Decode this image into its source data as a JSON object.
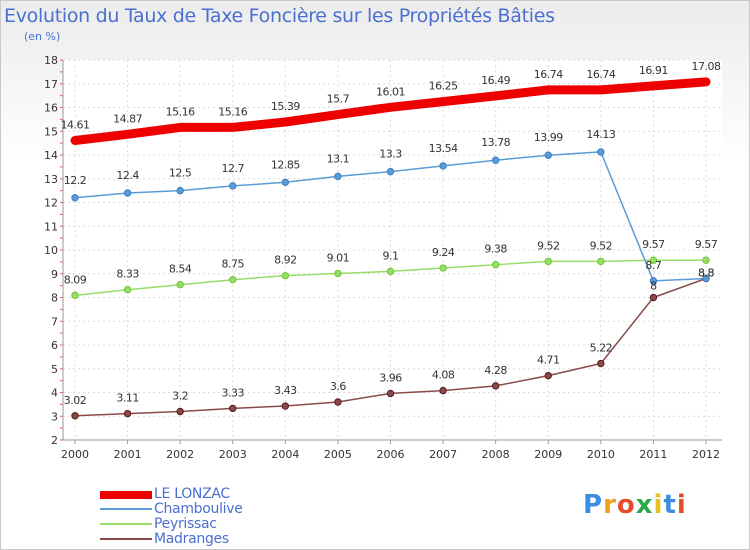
{
  "header": {
    "title": "Evolution du Taux de Taxe Foncière sur les Propriétés Bâties",
    "subtitle": "(en %)"
  },
  "logo": {
    "letters": [
      "P",
      "r",
      "o",
      "x",
      "i",
      "t",
      "i"
    ],
    "colors": [
      "#3a8de0",
      "#f0a020",
      "#e84c2c",
      "#2aa84a",
      "#e8c020",
      "#3a8de0",
      "#e84c2c"
    ]
  },
  "chart_data": {
    "type": "line",
    "title": "Evolution du Taux de Taxe Foncière sur les Propriétés Bâties",
    "ylabel": "(en %)",
    "xlabel": "",
    "ylim": [
      2,
      18
    ],
    "yticks": [
      "2",
      "3",
      "4",
      "5",
      "6",
      "7",
      "8",
      "9",
      "10",
      "11",
      "12",
      "13",
      "14",
      "15",
      "16",
      "17",
      "18"
    ],
    "categories": [
      "2000",
      "2001",
      "2002",
      "2003",
      "2004",
      "2005",
      "2006",
      "2007",
      "2008",
      "2009",
      "2010",
      "2011",
      "2012"
    ],
    "series": [
      {
        "name": "LE LONZAC",
        "color": "#ee0000",
        "style": "thick",
        "values": [
          14.61,
          14.87,
          15.16,
          15.16,
          15.39,
          15.7,
          16.01,
          16.25,
          16.49,
          16.74,
          16.74,
          16.91,
          17.08
        ],
        "labels": [
          "14.61",
          "14.87",
          "15.16",
          "15.16",
          "15.39",
          "15.7",
          "16.01",
          "16.25",
          "16.49",
          "16.74",
          "16.74",
          "16.91",
          "17.08"
        ]
      },
      {
        "name": "Chamboulive",
        "color": "#5b9bd5",
        "marker": "#3a7fc4",
        "style": "thin",
        "values": [
          12.2,
          12.4,
          12.5,
          12.7,
          12.85,
          13.1,
          13.3,
          13.54,
          13.78,
          13.99,
          14.13,
          8.7,
          8.8
        ],
        "labels": [
          "12.2",
          "12.4",
          "12.5",
          "12.7",
          "12.85",
          "13.1",
          "13.3",
          "13.54",
          "13.78",
          "13.99",
          "14.13",
          "8.7",
          "8.8"
        ]
      },
      {
        "name": "Peyrissac",
        "color": "#99dd66",
        "marker": "#6cc63a",
        "style": "thin",
        "values": [
          8.09,
          8.33,
          8.54,
          8.75,
          8.92,
          9.01,
          9.1,
          9.24,
          9.38,
          9.52,
          9.52,
          9.57,
          9.57
        ],
        "labels": [
          "8.09",
          "8.33",
          "8.54",
          "8.75",
          "8.92",
          "9.01",
          "9.1",
          "9.24",
          "9.38",
          "9.52",
          "9.52",
          "9.57",
          "9.57"
        ]
      },
      {
        "name": "Madranges",
        "color": "#8b4a4a",
        "marker": "#5a1a1a",
        "style": "thin",
        "values": [
          3.02,
          3.11,
          3.2,
          3.33,
          3.43,
          3.6,
          3.96,
          4.08,
          4.28,
          4.71,
          5.22,
          8.0,
          8.8
        ],
        "labels": [
          "3.02",
          "3.11",
          "3.2",
          "3.33",
          "3.43",
          "3.6",
          "3.96",
          "4.08",
          "4.28",
          "4.71",
          "5.22",
          "8",
          "8.8"
        ]
      }
    ],
    "legend": "bottom-left"
  }
}
